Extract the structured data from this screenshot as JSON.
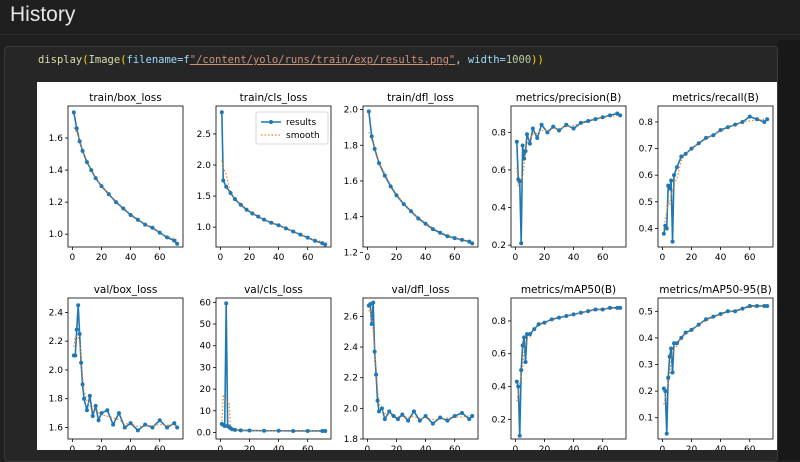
{
  "page": {
    "title": "History"
  },
  "cell": {
    "code": {
      "fn1": "display",
      "p1": "(",
      "fn2": "Image",
      "p2": "(",
      "arg1": "filename=f",
      "str": "\"/content/yolo/runs/train/exp/results.png\"",
      "mid": ", ",
      "arg2": "width=",
      "num": "1000",
      "p3": ")",
      "p4": ")"
    }
  },
  "legend": {
    "results": "results",
    "smooth": "smooth"
  },
  "colors": {
    "results": "#1f77b4",
    "smooth": "#ff7f0e"
  },
  "chart_data": [
    {
      "type": "line",
      "title": "train/box_loss",
      "ylim": [
        0.92,
        1.8
      ],
      "xticks": [
        0,
        20,
        40,
        60
      ],
      "yticks": [
        1.0,
        1.2,
        1.4,
        1.6
      ],
      "series": [
        {
          "name": "results",
          "x": [
            1,
            3,
            5,
            7,
            10,
            13,
            16,
            20,
            25,
            30,
            35,
            40,
            45,
            50,
            55,
            60,
            65,
            70,
            72
          ],
          "values": [
            1.76,
            1.66,
            1.58,
            1.52,
            1.45,
            1.4,
            1.35,
            1.3,
            1.25,
            1.2,
            1.16,
            1.12,
            1.09,
            1.06,
            1.04,
            1.01,
            0.98,
            0.96,
            0.94
          ]
        }
      ]
    },
    {
      "type": "line",
      "title": "train/cls_loss",
      "ylim": [
        0.68,
        2.95
      ],
      "xticks": [
        0,
        20,
        40,
        60
      ],
      "yticks": [
        1.0,
        1.5,
        2.0,
        2.5
      ],
      "series": [
        {
          "name": "results",
          "x": [
            1,
            2,
            4,
            7,
            10,
            14,
            18,
            22,
            26,
            30,
            35,
            40,
            45,
            50,
            55,
            60,
            65,
            70,
            72
          ],
          "values": [
            2.85,
            1.75,
            1.65,
            1.55,
            1.45,
            1.36,
            1.28,
            1.22,
            1.17,
            1.12,
            1.07,
            1.03,
            0.98,
            0.93,
            0.88,
            0.83,
            0.78,
            0.74,
            0.72
          ]
        }
      ]
    },
    {
      "type": "line",
      "title": "train/dfl_loss",
      "ylim": [
        1.23,
        2.02
      ],
      "xticks": [
        0,
        20,
        40,
        60
      ],
      "yticks": [
        1.2,
        1.4,
        1.6,
        1.8,
        2.0
      ],
      "series": [
        {
          "name": "results",
          "x": [
            1,
            3,
            5,
            8,
            12,
            16,
            20,
            25,
            30,
            35,
            40,
            45,
            50,
            55,
            60,
            65,
            70,
            72
          ],
          "values": [
            1.99,
            1.85,
            1.78,
            1.7,
            1.63,
            1.57,
            1.52,
            1.47,
            1.43,
            1.39,
            1.36,
            1.33,
            1.31,
            1.29,
            1.28,
            1.27,
            1.26,
            1.25
          ]
        }
      ]
    },
    {
      "type": "line",
      "title": "metrics/precision(B)",
      "ylim": [
        0.19,
        0.94
      ],
      "xticks": [
        0,
        20,
        40,
        60
      ],
      "yticks": [
        0.2,
        0.4,
        0.6,
        0.8
      ],
      "series": [
        {
          "name": "results",
          "x": [
            1,
            2,
            3,
            4,
            5,
            6,
            7,
            8,
            10,
            12,
            15,
            18,
            22,
            26,
            30,
            35,
            40,
            45,
            50,
            55,
            60,
            65,
            70,
            72
          ],
          "values": [
            0.75,
            0.55,
            0.54,
            0.21,
            0.73,
            0.66,
            0.7,
            0.79,
            0.74,
            0.82,
            0.77,
            0.84,
            0.8,
            0.83,
            0.81,
            0.84,
            0.82,
            0.85,
            0.86,
            0.87,
            0.88,
            0.89,
            0.9,
            0.89
          ]
        }
      ]
    },
    {
      "type": "line",
      "title": "metrics/recall(B)",
      "ylim": [
        0.33,
        0.86
      ],
      "xticks": [
        0,
        20,
        40,
        60
      ],
      "yticks": [
        0.4,
        0.5,
        0.6,
        0.7,
        0.8
      ],
      "series": [
        {
          "name": "results",
          "x": [
            1,
            2,
            3,
            4,
            5,
            6,
            7,
            8,
            10,
            13,
            16,
            20,
            25,
            30,
            35,
            40,
            45,
            50,
            55,
            60,
            65,
            70,
            72
          ],
          "values": [
            0.38,
            0.41,
            0.4,
            0.56,
            0.55,
            0.58,
            0.35,
            0.6,
            0.63,
            0.67,
            0.68,
            0.7,
            0.72,
            0.74,
            0.75,
            0.77,
            0.78,
            0.79,
            0.8,
            0.82,
            0.81,
            0.8,
            0.81
          ]
        }
      ]
    },
    {
      "type": "line",
      "title": "val/box_loss",
      "ylim": [
        1.52,
        2.5
      ],
      "xticks": [
        0,
        20,
        40,
        60
      ],
      "yticks": [
        1.6,
        1.8,
        2.0,
        2.2,
        2.4
      ],
      "series": [
        {
          "name": "results",
          "x": [
            1,
            2,
            3,
            4,
            5,
            6,
            7,
            8,
            10,
            12,
            14,
            16,
            18,
            20,
            24,
            28,
            32,
            36,
            40,
            45,
            50,
            55,
            60,
            65,
            70,
            72
          ],
          "values": [
            2.1,
            2.1,
            2.28,
            2.45,
            2.25,
            2.05,
            1.9,
            1.8,
            1.72,
            1.82,
            1.68,
            1.75,
            1.65,
            1.7,
            1.72,
            1.62,
            1.7,
            1.6,
            1.63,
            1.58,
            1.62,
            1.6,
            1.65,
            1.6,
            1.63,
            1.6
          ]
        }
      ]
    },
    {
      "type": "line",
      "title": "val/cls_loss",
      "ylim": [
        -3,
        62
      ],
      "xticks": [
        0,
        20,
        40,
        60
      ],
      "yticks": [
        0,
        10,
        20,
        30,
        40,
        50,
        60
      ],
      "series": [
        {
          "name": "results",
          "x": [
            1,
            2,
            3,
            4,
            5,
            6,
            7,
            8,
            10,
            14,
            20,
            30,
            40,
            50,
            60,
            70,
            72
          ],
          "values": [
            4.0,
            3.5,
            3.0,
            59.5,
            3.0,
            2.5,
            2.0,
            1.5,
            1.2,
            1.0,
            0.9,
            0.8,
            0.8,
            0.7,
            0.7,
            0.7,
            0.7
          ]
        }
      ]
    },
    {
      "type": "line",
      "title": "val/dfl_loss",
      "ylim": [
        1.8,
        2.72
      ],
      "xticks": [
        0,
        20,
        40,
        60
      ],
      "yticks": [
        1.8,
        2.0,
        2.2,
        2.4,
        2.6
      ],
      "series": [
        {
          "name": "results",
          "x": [
            1,
            2,
            3,
            4,
            5,
            6,
            7,
            8,
            10,
            12,
            15,
            18,
            21,
            24,
            28,
            32,
            36,
            40,
            45,
            50,
            55,
            60,
            65,
            70,
            72
          ],
          "values": [
            2.67,
            2.68,
            2.55,
            2.69,
            2.37,
            2.22,
            2.05,
            1.98,
            2.0,
            1.93,
            1.98,
            1.95,
            1.93,
            1.96,
            1.92,
            1.98,
            1.92,
            1.95,
            1.9,
            1.94,
            1.92,
            1.95,
            1.97,
            1.93,
            1.95
          ]
        }
      ]
    },
    {
      "type": "line",
      "title": "metrics/mAP50(B)",
      "ylim": [
        0.08,
        0.94
      ],
      "xticks": [
        0,
        20,
        40,
        60
      ],
      "yticks": [
        0.2,
        0.4,
        0.6,
        0.8
      ],
      "series": [
        {
          "name": "results",
          "x": [
            1,
            2,
            3,
            4,
            5,
            6,
            7,
            8,
            10,
            13,
            16,
            20,
            25,
            30,
            35,
            40,
            45,
            50,
            55,
            60,
            65,
            70,
            72
          ],
          "values": [
            0.43,
            0.4,
            0.1,
            0.5,
            0.65,
            0.7,
            0.55,
            0.72,
            0.72,
            0.75,
            0.78,
            0.79,
            0.81,
            0.82,
            0.83,
            0.84,
            0.85,
            0.86,
            0.87,
            0.87,
            0.88,
            0.88,
            0.88
          ]
        }
      ]
    },
    {
      "type": "line",
      "title": "metrics/mAP50-95(B)",
      "ylim": [
        0.02,
        0.55
      ],
      "xticks": [
        0,
        20,
        40,
        60
      ],
      "yticks": [
        0.1,
        0.2,
        0.3,
        0.4,
        0.5
      ],
      "series": [
        {
          "name": "results",
          "x": [
            1,
            2,
            3,
            4,
            5,
            6,
            7,
            8,
            10,
            13,
            16,
            20,
            25,
            30,
            35,
            40,
            45,
            50,
            55,
            60,
            65,
            70,
            72
          ],
          "values": [
            0.21,
            0.2,
            0.04,
            0.25,
            0.33,
            0.36,
            0.27,
            0.38,
            0.38,
            0.4,
            0.42,
            0.43,
            0.45,
            0.47,
            0.48,
            0.49,
            0.5,
            0.5,
            0.51,
            0.52,
            0.52,
            0.52,
            0.52
          ]
        }
      ]
    }
  ]
}
